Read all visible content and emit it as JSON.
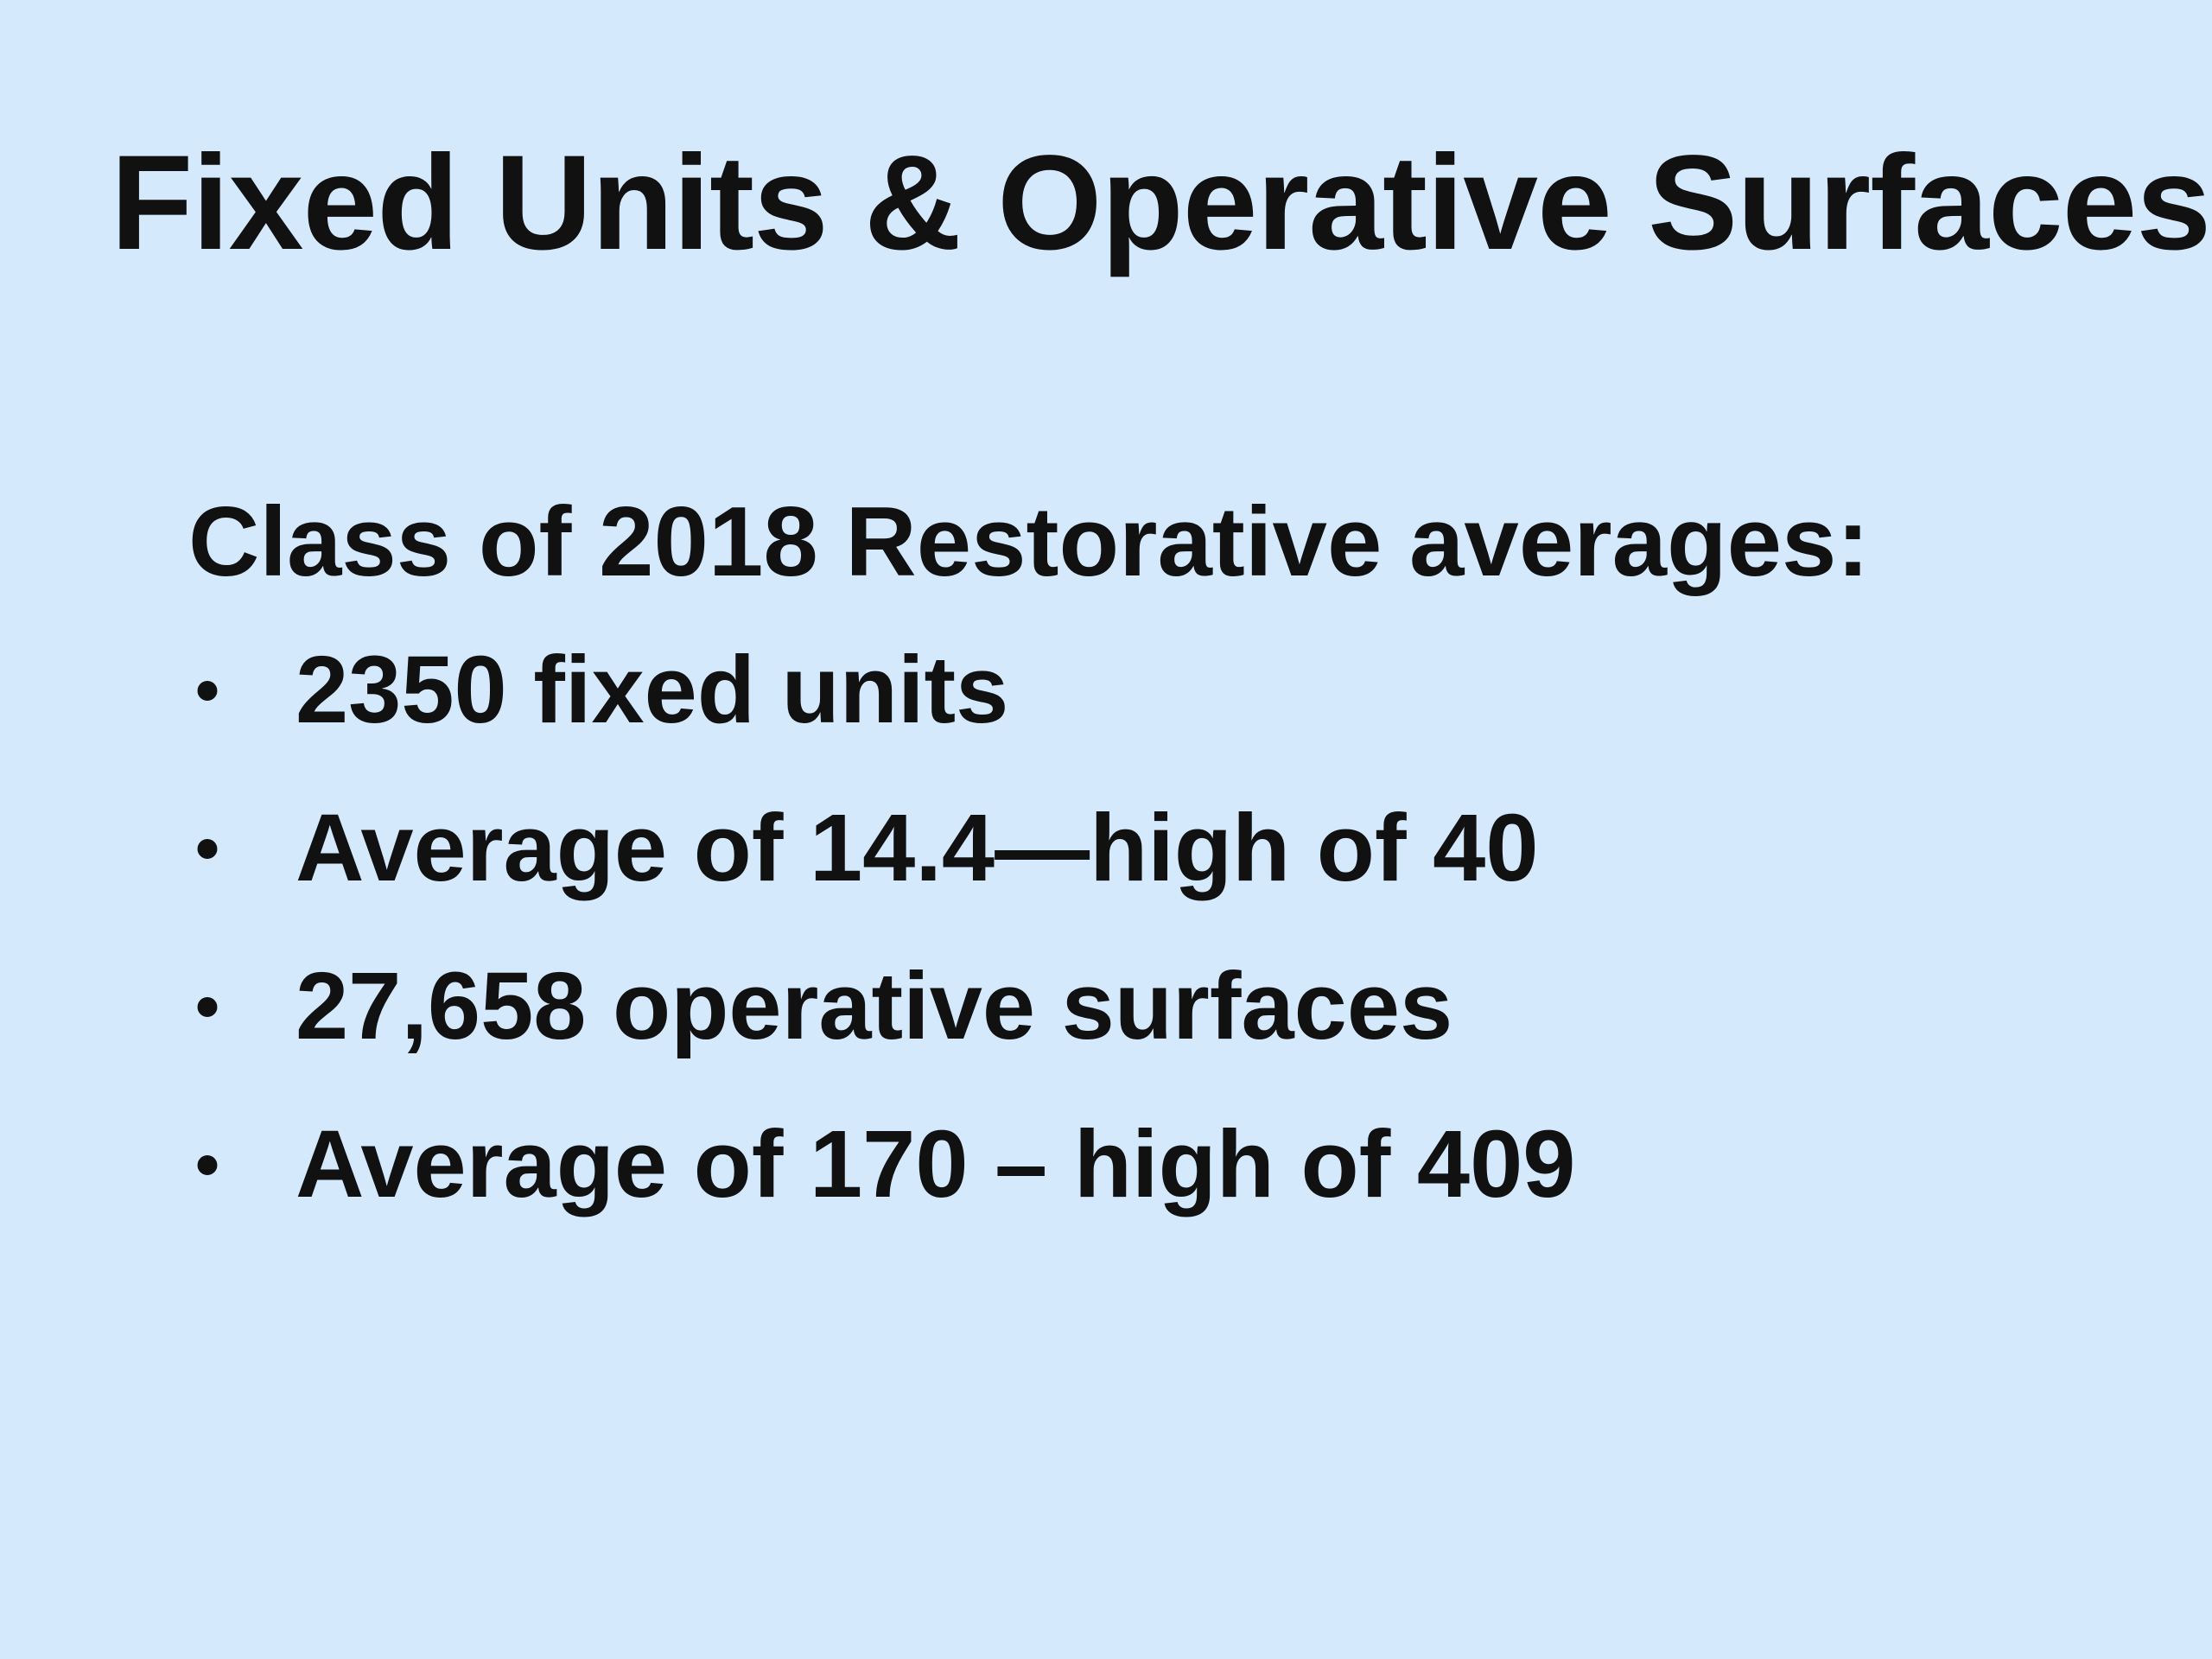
{
  "slide": {
    "title": "Fixed Units & Operative Surfaces",
    "subtitle": "Class of 2018 Restorative averages:",
    "bullet_symbol": "•",
    "bullets": [
      "2350 fixed units",
      "Average of 14.4—high of 40",
      "27,658 operative surfaces",
      "Average of 170 – high of 409"
    ]
  },
  "colors": {
    "background": "#d5e9fd",
    "text": "#111111"
  }
}
